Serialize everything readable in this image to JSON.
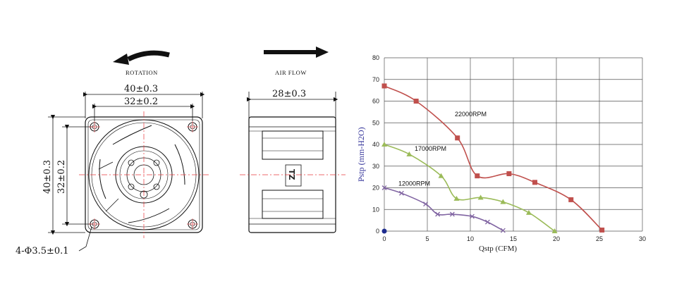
{
  "drawings": {
    "rotation_label": "ROTATION",
    "airflow_label": "AIR FLOW",
    "dim_outer_width": "40±0.3",
    "dim_inner_width": "32±0.2",
    "dim_outer_height": "40±0.3",
    "dim_inner_height": "32±0.2",
    "dim_depth": "28±0.3",
    "hole_callout": "4-Φ3.5±0.1",
    "side_logo": "TZ"
  },
  "chart_data": {
    "type": "line",
    "xlabel": "Qstp (CFM)",
    "ylabel": "Pstp (mm-H2O)",
    "xlim": [
      0,
      30
    ],
    "ylim": [
      0,
      80
    ],
    "xticks": [
      0,
      5,
      10,
      15,
      20,
      25,
      30
    ],
    "yticks": [
      0,
      10,
      20,
      30,
      40,
      50,
      60,
      70,
      80
    ],
    "grid": true,
    "series": [
      {
        "name": "22000RPM",
        "color": "#c0504d",
        "marker": "square",
        "x": [
          0,
          3.7,
          8.5,
          10.8,
          14.5,
          17.5,
          21.7,
          25.3
        ],
        "y": [
          67,
          60,
          43,
          25.5,
          26.5,
          22.5,
          14.5,
          0.5
        ]
      },
      {
        "name": "17000RPM",
        "color": "#9bbb59",
        "marker": "triangle",
        "x": [
          0,
          2.9,
          6.6,
          8.4,
          11.2,
          13.8,
          16.8,
          19.8
        ],
        "y": [
          40,
          35.5,
          25.5,
          15,
          15.5,
          13.5,
          8.5,
          0
        ]
      },
      {
        "name": "12000RPM",
        "color": "#8064a2",
        "marker": "x",
        "x": [
          0,
          2.0,
          4.8,
          6.2,
          7.9,
          10.2,
          12.0,
          13.8
        ],
        "y": [
          20,
          17.5,
          12.5,
          7.8,
          7.8,
          6.8,
          4.2,
          0.3
        ]
      }
    ]
  }
}
